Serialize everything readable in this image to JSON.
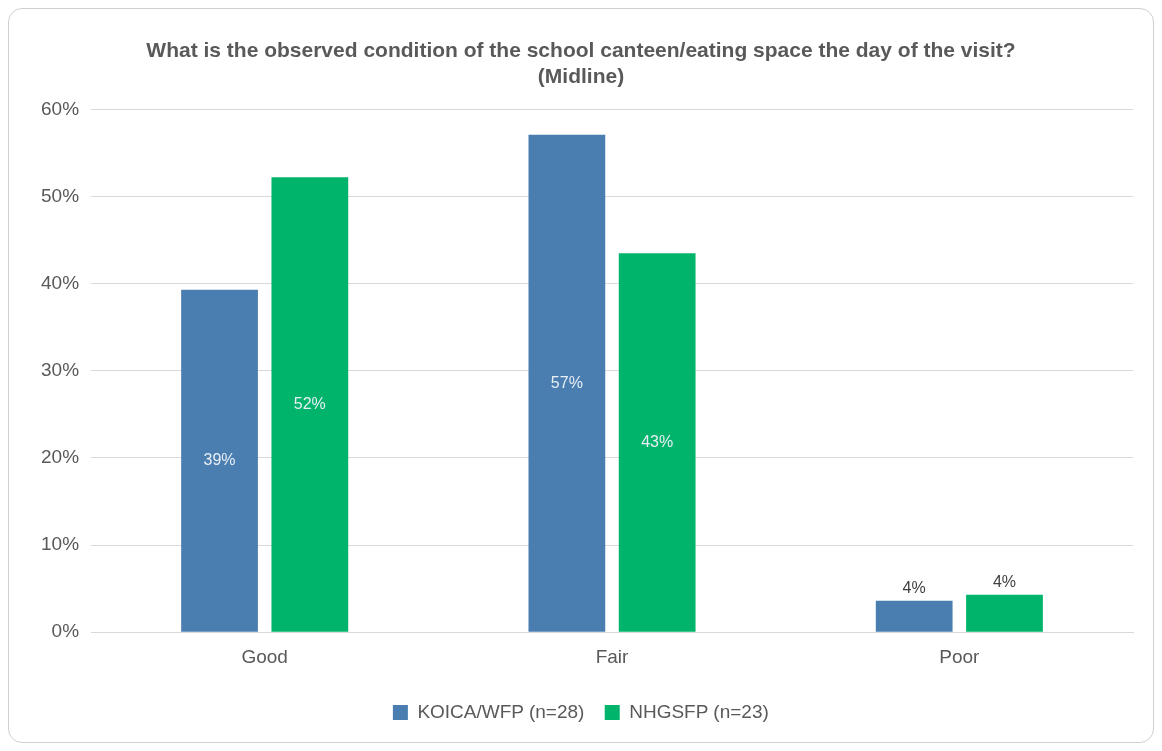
{
  "chart_data": {
    "type": "bar",
    "title": "What is the observed condition of the school canteen/eating space the day of the visit? (Midline)",
    "categories": [
      "Good",
      "Fair",
      "Poor"
    ],
    "series": [
      {
        "name": "KOICA/WFP (n=28)",
        "color": "#4a7eb0",
        "values": [
          39.3,
          57.1,
          3.6
        ],
        "value_labels": [
          "39%",
          "57%",
          "4%"
        ]
      },
      {
        "name": "NHGSFP (n=23)",
        "color": "#00b46b",
        "values": [
          52.2,
          43.5,
          4.3
        ],
        "value_labels": [
          "52%",
          "43%",
          "4%"
        ]
      }
    ],
    "ylim": [
      0,
      60
    ],
    "yticks": [
      {
        "value": 0,
        "label": "0%"
      },
      {
        "value": 10,
        "label": "10%"
      },
      {
        "value": 20,
        "label": "20%"
      },
      {
        "value": 30,
        "label": "30%"
      },
      {
        "value": 40,
        "label": "40%"
      },
      {
        "value": 50,
        "label": "50%"
      },
      {
        "value": 60,
        "label": "60%"
      }
    ],
    "grid": "y",
    "legend": "bottom"
  }
}
